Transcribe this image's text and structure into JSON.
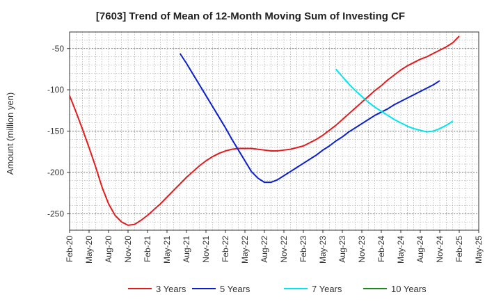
{
  "chart_data": {
    "type": "line",
    "title": "[7603]  Trend of Mean of 12-Month Moving Sum of Investing CF",
    "xlabel": "",
    "ylabel": "Amount (million yen)",
    "ylim": [
      -270,
      -30
    ],
    "yticks": [
      -50,
      -100,
      -150,
      -200,
      -250
    ],
    "grid": true,
    "legend_position": "bottom",
    "x_tick_labels": [
      "Feb-20",
      "May-20",
      "Aug-20",
      "Nov-20",
      "Feb-21",
      "May-21",
      "Aug-21",
      "Nov-21",
      "Feb-22",
      "May-22",
      "Aug-22",
      "Nov-22",
      "Feb-23",
      "May-23",
      "Aug-23",
      "Nov-23",
      "Feb-24",
      "May-24",
      "Aug-24",
      "Nov-24",
      "Feb-25",
      "May-25"
    ],
    "series": [
      {
        "name": "3 Years",
        "color": "#e41a1c",
        "x": [
          "Feb-20",
          "Mar-20",
          "Apr-20",
          "May-20",
          "Jun-20",
          "Jul-20",
          "Aug-20",
          "Sep-20",
          "Oct-20",
          "Nov-20",
          "Dec-20",
          "Jan-21",
          "Feb-21",
          "Mar-21",
          "Apr-21",
          "May-21",
          "Jun-21",
          "Jul-21",
          "Aug-21",
          "Sep-21",
          "Oct-21",
          "Nov-21",
          "Dec-21",
          "Jan-22",
          "Feb-22",
          "Mar-22",
          "Apr-22",
          "May-22",
          "Jun-22",
          "Jul-22",
          "Aug-22",
          "Sep-22",
          "Oct-22",
          "Nov-22",
          "Dec-22",
          "Jan-23",
          "Feb-23",
          "Mar-23",
          "Apr-23",
          "May-23",
          "Jun-23",
          "Jul-23",
          "Aug-23",
          "Sep-23",
          "Oct-23",
          "Nov-23",
          "Dec-23",
          "Jan-24",
          "Feb-24",
          "Mar-24",
          "Apr-24",
          "May-24",
          "Jun-24",
          "Jul-24",
          "Aug-24",
          "Sep-24",
          "Oct-24",
          "Nov-24",
          "Dec-24",
          "Jan-25",
          "Feb-25"
        ],
        "values": [
          -107,
          -127,
          -148,
          -170,
          -193,
          -218,
          -238,
          -252,
          -260,
          -264,
          -263,
          -258,
          -252,
          -245,
          -238,
          -230,
          -222,
          -214,
          -206,
          -199,
          -192,
          -186,
          -181,
          -177,
          -174,
          -172,
          -171,
          -171,
          -171,
          -172,
          -173,
          -174,
          -174,
          -173,
          -172,
          -170,
          -168,
          -164,
          -160,
          -155,
          -149,
          -143,
          -136,
          -129,
          -122,
          -115,
          -108,
          -101,
          -95,
          -88,
          -82,
          -76,
          -71,
          -67,
          -63,
          -60,
          -56,
          -52,
          -48,
          -43,
          -35
        ]
      },
      {
        "name": "5 Years",
        "color": "#0a1fd0",
        "x": [
          "Feb-21",
          "Mar-21",
          "Apr-21",
          "May-21",
          "Jun-21",
          "Jul-21",
          "Aug-21",
          "Sep-21",
          "Oct-21",
          "Nov-21",
          "Dec-21",
          "Jan-22",
          "Feb-22",
          "Mar-22",
          "Apr-22",
          "May-22",
          "Jun-22",
          "Jul-22",
          "Aug-22",
          "Sep-22",
          "Oct-22",
          "Nov-22",
          "Dec-22",
          "Jan-23",
          "Feb-23",
          "Mar-23",
          "Apr-23",
          "May-23",
          "Jun-23",
          "Jul-23",
          "Aug-23",
          "Sep-23",
          "Oct-23",
          "Nov-23",
          "Dec-23",
          "Jan-24",
          "Feb-24",
          "Mar-24",
          "Apr-24",
          "May-24",
          "Jun-24",
          "Jul-24",
          "Aug-24",
          "Sep-24",
          "Oct-24",
          "Nov-24",
          "Dec-24",
          "Jan-25",
          "Feb-25"
        ],
        "values": [
          null,
          null,
          null,
          null,
          null,
          -56,
          -68,
          -81,
          -94,
          -107,
          -120,
          -133,
          -146,
          -160,
          -173,
          -186,
          -199,
          -207,
          -212,
          -212,
          -209,
          -204,
          -199,
          -194,
          -189,
          -184,
          -179,
          -173,
          -168,
          -162,
          -157,
          -151,
          -146,
          -141,
          -136,
          -131,
          -127,
          -123,
          -118,
          -114,
          -110,
          -106,
          -102,
          -98,
          -94,
          -89,
          null,
          null,
          null
        ]
      },
      {
        "name": "7 Years",
        "color": "#00e5ee",
        "x": [
          "Jul-23",
          "Aug-23",
          "Sep-23",
          "Oct-23",
          "Nov-23",
          "Dec-23",
          "Jan-24",
          "Feb-24",
          "Mar-24",
          "Apr-24",
          "May-24",
          "Jun-24",
          "Jul-24",
          "Aug-24",
          "Sep-24",
          "Oct-24",
          "Nov-24",
          "Dec-24",
          "Jan-25",
          "Feb-25"
        ],
        "values": [
          -75,
          -84,
          -93,
          -101,
          -108,
          -115,
          -121,
          -126,
          -131,
          -136,
          -140,
          -144,
          -147,
          -149,
          -151,
          -150,
          -147,
          -143,
          -138,
          null
        ]
      },
      {
        "name": "10 Years",
        "color": "#1a8a1a",
        "x": [],
        "values": []
      }
    ]
  }
}
